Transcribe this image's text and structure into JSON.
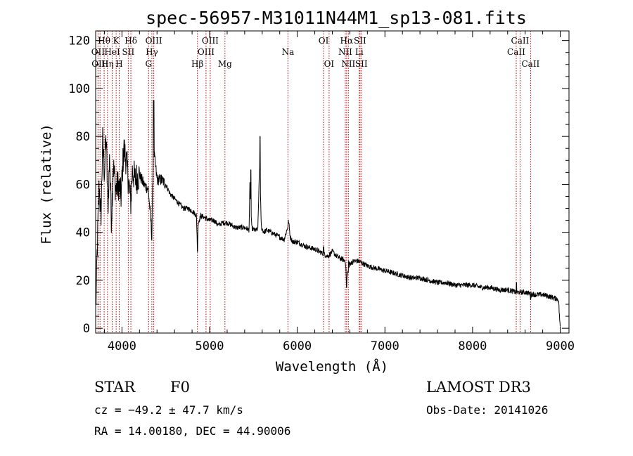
{
  "chart_data": {
    "type": "line",
    "title": "spec-56957-M31011N44M1_sp13-081.fits",
    "xlabel": "Wavelength (Å)",
    "ylabel": "Flux (relative)",
    "xlim": [
      3700,
      9100
    ],
    "ylim": [
      -2,
      124
    ],
    "xticks": [
      4000,
      5000,
      6000,
      7000,
      8000,
      9000
    ],
    "yticks": [
      0,
      20,
      40,
      60,
      80,
      100,
      120
    ],
    "grid": false,
    "series": [
      {
        "name": "spectrum",
        "x": [
          3700,
          3720,
          3740,
          3760,
          3780,
          3800,
          3820,
          3840,
          3860,
          3880,
          3900,
          3930,
          3960,
          3990,
          4020,
          4050,
          4080,
          4100,
          4120,
          4150,
          4200,
          4250,
          4300,
          4340,
          4360,
          4400,
          4450,
          4500,
          4550,
          4600,
          4650,
          4700,
          4750,
          4800,
          4850,
          4860,
          4870,
          4900,
          4950,
          5000,
          5050,
          5100,
          5150,
          5200,
          5250,
          5300,
          5350,
          5400,
          5450,
          5460,
          5480,
          5500,
          5550,
          5570,
          5590,
          5620,
          5650,
          5700,
          5750,
          5800,
          5850,
          5890,
          5900,
          5920,
          5950,
          6000,
          6100,
          6200,
          6300,
          6350,
          6400,
          6450,
          6500,
          6550,
          6563,
          6570,
          6600,
          6650,
          6700,
          6800,
          6900,
          7000,
          7100,
          7200,
          7300,
          7400,
          7500,
          7600,
          7700,
          7800,
          7900,
          8000,
          8100,
          8200,
          8300,
          8400,
          8500,
          8600,
          8700,
          8800,
          8900,
          8980,
          9000
        ],
        "values": [
          5,
          35,
          60,
          45,
          78,
          65,
          80,
          50,
          72,
          45,
          68,
          58,
          60,
          55,
          75,
          70,
          60,
          52,
          66,
          62,
          64,
          60,
          58,
          40,
          75,
          62,
          62,
          60,
          56,
          54,
          52,
          50,
          50,
          49,
          47,
          35,
          44,
          47,
          46,
          45,
          45,
          43,
          44,
          44,
          43,
          42,
          42,
          42,
          41,
          60,
          42,
          41,
          41,
          68,
          42,
          40,
          41,
          40,
          39,
          38,
          37,
          42,
          45,
          38,
          36,
          36,
          34,
          33,
          31,
          30,
          32,
          30,
          29,
          28,
          19,
          22,
          27,
          28,
          28,
          26,
          25,
          24,
          23,
          22,
          21,
          21,
          20,
          19,
          19,
          18,
          18,
          18,
          17,
          17,
          16,
          16,
          15,
          15,
          14,
          14,
          13,
          12,
          0
        ],
        "spikes": [
          {
            "x": 4340,
            "value": 37
          },
          {
            "x": 4362,
            "value": 95
          },
          {
            "x": 4861,
            "value": 32
          },
          {
            "x": 5470,
            "value": 66
          },
          {
            "x": 5575,
            "value": 80
          },
          {
            "x": 6300,
            "value": 34
          },
          {
            "x": 6563,
            "value": 17
          },
          {
            "x": 6587,
            "value": 28
          },
          {
            "x": 8500,
            "value": 19
          },
          {
            "x": 8543,
            "value": 15
          },
          {
            "x": 8662,
            "value": 12
          }
        ]
      }
    ],
    "spectral_lines": [
      {
        "label": "Hθ",
        "x": 3797,
        "row": 0
      },
      {
        "label": "OII",
        "x": 3727,
        "row": 1
      },
      {
        "label": "OIII",
        "x": 3750,
        "row": 2
      },
      {
        "label": "K",
        "x": 3934,
        "row": 0
      },
      {
        "label": "HeI",
        "x": 3889,
        "row": 1
      },
      {
        "label": "Hη",
        "x": 3835,
        "row": 2
      },
      {
        "label": "H",
        "x": 3969,
        "row": 2
      },
      {
        "label": "SII",
        "x": 4072,
        "row": 1
      },
      {
        "label": "Hδ",
        "x": 4102,
        "row": 0
      },
      {
        "label": "OIII",
        "x": 4363,
        "row": 0
      },
      {
        "label": "Hγ",
        "x": 4341,
        "row": 1
      },
      {
        "label": "G",
        "x": 4304,
        "row": 2
      },
      {
        "label": "Hβ",
        "x": 4861,
        "row": 2
      },
      {
        "label": "OIII",
        "x": 5007,
        "row": 0
      },
      {
        "label": "OIII",
        "x": 4959,
        "row": 1
      },
      {
        "label": "Mg",
        "x": 5175,
        "row": 2
      },
      {
        "label": "Na",
        "x": 5894,
        "row": 1
      },
      {
        "label": "OI",
        "x": 6300,
        "row": 0
      },
      {
        "label": "OI",
        "x": 6363,
        "row": 2
      },
      {
        "label": "Hα",
        "x": 6563,
        "row": 0
      },
      {
        "label": "SII",
        "x": 6716,
        "row": 0
      },
      {
        "label": "NII",
        "x": 6548,
        "row": 1
      },
      {
        "label": "Li",
        "x": 6707,
        "row": 1
      },
      {
        "label": "NII",
        "x": 6583,
        "row": 2
      },
      {
        "label": "SII",
        "x": 6731,
        "row": 2
      },
      {
        "label": "CaII",
        "x": 8542,
        "row": 0
      },
      {
        "label": "CaII",
        "x": 8498,
        "row": 1
      },
      {
        "label": "CaII",
        "x": 8662,
        "row": 2
      }
    ]
  },
  "info": {
    "object_class": "STAR",
    "subclass": "F0",
    "survey": "LAMOST DR3",
    "cz": "cz = −49.2 ± 47.7 km/s",
    "obs_date": "Obs-Date: 20141026",
    "coords": "RA =  14.00180, DEC =  44.90006"
  },
  "colors": {
    "spectrum": "#000000",
    "line_marker": "#cc0000"
  }
}
